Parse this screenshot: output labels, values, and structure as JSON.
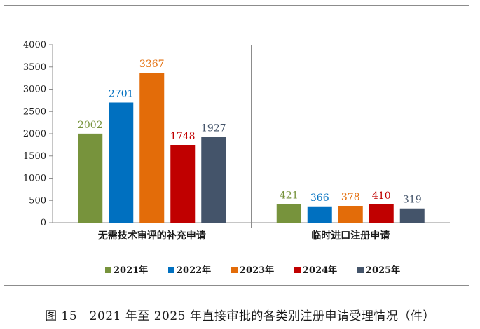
{
  "caption": "图 15　2021 年至 2025 年直接审批的各类别注册申请受理情况（件）",
  "chart_data": {
    "type": "bar",
    "categories": [
      "无需技术审评的补充申请",
      "临时进口注册申请"
    ],
    "series": [
      {
        "name": "2021年",
        "values": [
          2002,
          421
        ],
        "color": "#77933c"
      },
      {
        "name": "2022年",
        "values": [
          2701,
          366
        ],
        "color": "#0070c0"
      },
      {
        "name": "2023年",
        "values": [
          3367,
          378
        ],
        "color": "#e36c09"
      },
      {
        "name": "2024年",
        "values": [
          1748,
          410
        ],
        "color": "#c00000"
      },
      {
        "name": "2025年",
        "values": [
          1927,
          319
        ],
        "color": "#44546a"
      }
    ],
    "ylim": [
      0,
      4000
    ],
    "yticks": [
      0,
      500,
      1000,
      1500,
      2000,
      2500,
      3000,
      3500,
      4000
    ],
    "legend_position": "bottom",
    "grid": false
  }
}
